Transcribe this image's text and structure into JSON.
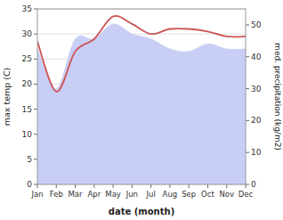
{
  "chart_data": {
    "type": "line",
    "x_label": "date (month)",
    "y_label": "max temp (C)",
    "y2_label": "med. precipitation (kg/m2)",
    "categories": [
      "Jan",
      "Feb",
      "Mar",
      "Apr",
      "May",
      "Jun",
      "Jul",
      "Aug",
      "Sep",
      "Oct",
      "Nov",
      "Dec"
    ],
    "series": [
      {
        "type": "area",
        "color": "#c8cef5",
        "values": [
          27,
          19,
          29,
          29,
          32,
          30,
          29,
          27,
          26.5,
          28,
          27,
          27
        ]
      },
      {
        "type": "line",
        "color": "#cc5555",
        "values": [
          28.5,
          18.5,
          26.5,
          29.0,
          33.5,
          32.0,
          30.0,
          31.0,
          31.0,
          30.5,
          29.5,
          29.5
        ]
      }
    ],
    "ylim": [
      0,
      35
    ],
    "yticks": [
      0,
      5,
      10,
      15,
      20,
      25,
      30,
      35
    ],
    "y2lim": [
      0,
      55
    ],
    "y2ticks": [
      0,
      10,
      20,
      30,
      40,
      50
    ],
    "grid": true
  }
}
